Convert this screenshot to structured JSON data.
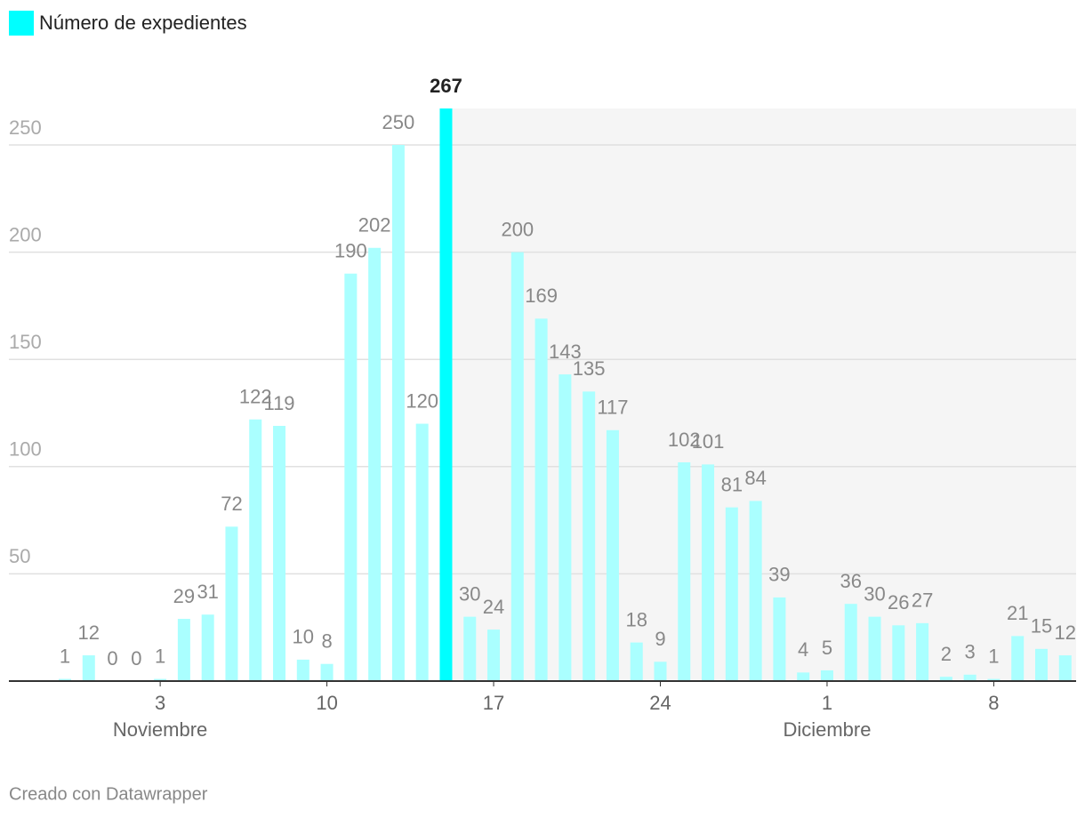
{
  "chart_data": {
    "type": "bar",
    "legend": "Número de expedientes",
    "categories": [
      null,
      null,
      null,
      null,
      "3",
      null,
      null,
      null,
      null,
      null,
      null,
      "10",
      null,
      null,
      null,
      null,
      null,
      null,
      "17",
      null,
      null,
      null,
      null,
      null,
      null,
      "24",
      null,
      null,
      null,
      null,
      null,
      null,
      "1",
      null,
      null,
      null,
      null,
      null,
      null,
      "8",
      null,
      null,
      null
    ],
    "month_labels": [
      "Noviembre",
      "Diciembre"
    ],
    "values": [
      1,
      12,
      0,
      0,
      1,
      29,
      31,
      72,
      122,
      119,
      10,
      8,
      190,
      202,
      250,
      120,
      267,
      30,
      24,
      200,
      169,
      143,
      135,
      117,
      18,
      9,
      102,
      101,
      81,
      84,
      39,
      4,
      5,
      36,
      30,
      26,
      27,
      2,
      3,
      1,
      21,
      15,
      12
    ],
    "color": "#aaffff",
    "highlight": {
      "index": 16,
      "color": "#00ffff"
    },
    "ylim": [
      0,
      267
    ],
    "yticks": [
      50,
      100,
      150,
      200,
      250
    ],
    "grid": true,
    "footer": "Creado con Datawrapper"
  }
}
